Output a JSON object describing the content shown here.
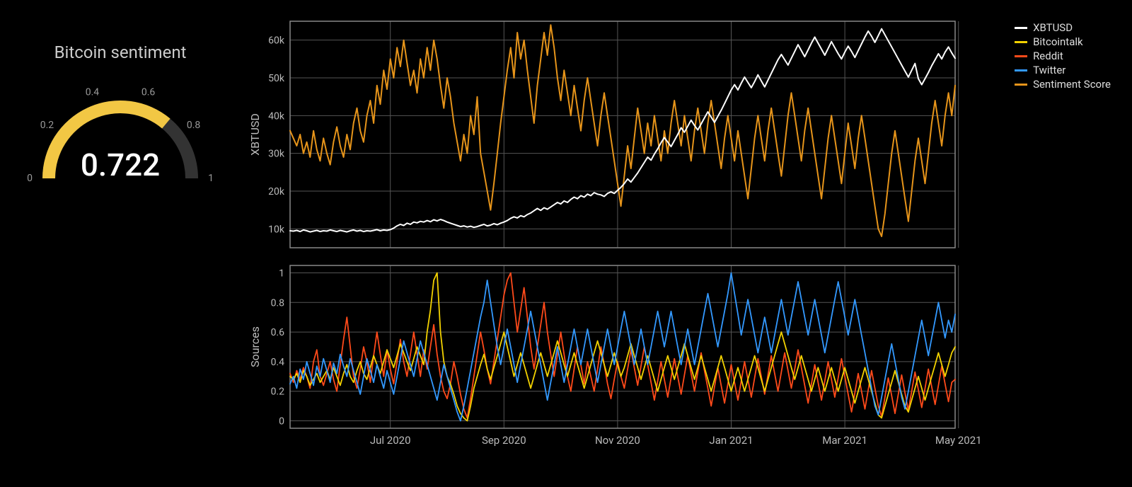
{
  "background_color": "#000000",
  "grid_color": "#555555",
  "axis_border_color": "#888888",
  "gauge": {
    "title": "Bitcoin sentiment",
    "value": 0.722,
    "value_text": "0.722",
    "min": 0,
    "max": 1,
    "ticks": [
      0,
      0.2,
      0.4,
      0.6,
      0.8,
      1
    ],
    "tick_labels": [
      "0",
      "0.2",
      "0.4",
      "0.6",
      "0.8",
      "1"
    ],
    "fill_color": "#f2c744",
    "track_color": "#333333",
    "title_color": "#cccccc",
    "tick_color": "#999999",
    "value_color": "#ffffff",
    "title_fontsize": 24,
    "value_fontsize": 44,
    "tick_fontsize": 14,
    "arc_width": 18
  },
  "legend": {
    "items": [
      {
        "label": "XBTUSD",
        "color": "#ffffff"
      },
      {
        "label": "Bitcointalk",
        "color": "#f2d100"
      },
      {
        "label": "Reddit",
        "color": "#ff4a1a"
      },
      {
        "label": "Twitter",
        "color": "#3399ff"
      },
      {
        "label": "Sentiment Score",
        "color": "#e6941a"
      }
    ],
    "fontsize": 15,
    "label_color": "#dddddd"
  },
  "x_axis": {
    "n_points": 200,
    "tick_positions": [
      30,
      64,
      98,
      132,
      166,
      200
    ],
    "tick_labels": [
      "Jul 2020",
      "Sep 2020",
      "Nov 2020",
      "Jan 2021",
      "Mar 2021",
      "May 2021"
    ],
    "label_fontsize": 15,
    "label_color": "#bbbbbb"
  },
  "panel_top": {
    "type": "line",
    "ylabel": "XBTUSD",
    "ylim": [
      5000,
      65000
    ],
    "yticks": [
      10000,
      20000,
      30000,
      40000,
      50000,
      60000
    ],
    "ytick_labels": [
      "10k",
      "20k",
      "30k",
      "40k",
      "50k",
      "60k"
    ],
    "line_width": 2,
    "series": {
      "xbtusd": {
        "color": "#ffffff",
        "values": [
          9500,
          9400,
          9600,
          9300,
          9700,
          9500,
          9200,
          9400,
          9600,
          9300,
          9500,
          9400,
          9700,
          9500,
          9300,
          9600,
          9400,
          9200,
          9500,
          9700,
          9400,
          9600,
          9300,
          9500,
          9400,
          9600,
          9800,
          9500,
          9700,
          9600,
          9800,
          10200,
          10800,
          11200,
          10900,
          11500,
          11200,
          11800,
          11600,
          12000,
          11800,
          12200,
          11900,
          12400,
          12100,
          12500,
          12200,
          11800,
          11500,
          11200,
          10900,
          10600,
          10800,
          10500,
          10700,
          10400,
          10600,
          10900,
          11200,
          10800,
          11000,
          11400,
          11100,
          11500,
          11800,
          12200,
          12800,
          13200,
          12900,
          13500,
          13200,
          13800,
          14200,
          14800,
          15400,
          14900,
          15600,
          15200,
          15800,
          16400,
          17000,
          16600,
          17400,
          17000,
          17800,
          18400,
          18000,
          18800,
          18400,
          19200,
          18800,
          19600,
          19200,
          19000,
          18600,
          19400,
          19800,
          19400,
          20200,
          21000,
          22000,
          23200,
          22400,
          23600,
          24800,
          26200,
          27600,
          29000,
          28200,
          29800,
          31200,
          32800,
          34200,
          33000,
          31800,
          33400,
          35000,
          36800,
          35600,
          37200,
          38800,
          37400,
          36200,
          37800,
          39400,
          41000,
          39600,
          38200,
          39800,
          41400,
          43200,
          45000,
          46800,
          48200,
          46800,
          48600,
          50200,
          48800,
          47400,
          49000,
          50800,
          49200,
          47600,
          49400,
          51200,
          53000,
          54800,
          56200,
          54800,
          53400,
          55200,
          57000,
          58800,
          57200,
          55600,
          57400,
          59200,
          60800,
          59200,
          57600,
          56000,
          57800,
          59600,
          58000,
          56400,
          55000,
          56800,
          58400,
          57000,
          55400,
          57200,
          59000,
          60800,
          62400,
          61000,
          59400,
          61200,
          63000,
          61400,
          59800,
          58200,
          56600,
          55000,
          53400,
          51800,
          50200,
          52000,
          53800,
          49800,
          48200,
          49800,
          51400,
          53200,
          54800,
          56400,
          55000,
          56800,
          58200,
          56600,
          55200
        ]
      },
      "sentiment": {
        "color": "#e6941a",
        "values": [
          36000,
          34000,
          32000,
          35000,
          30000,
          33000,
          29000,
          36000,
          31000,
          28000,
          34000,
          30000,
          27000,
          33000,
          37000,
          32000,
          29000,
          35000,
          31000,
          38000,
          42000,
          36000,
          33000,
          40000,
          44000,
          38000,
          48000,
          43000,
          52000,
          47000,
          55000,
          50000,
          58000,
          53000,
          60000,
          54000,
          48000,
          52000,
          46000,
          55000,
          50000,
          58000,
          52000,
          60000,
          55000,
          48000,
          42000,
          50000,
          45000,
          38000,
          33000,
          28000,
          35000,
          30000,
          40000,
          35000,
          45000,
          30000,
          25000,
          20000,
          15000,
          22000,
          30000,
          38000,
          45000,
          52000,
          58000,
          50000,
          62000,
          55000,
          60000,
          52000,
          45000,
          38000,
          48000,
          55000,
          62000,
          56000,
          64000,
          58000,
          50000,
          44000,
          52000,
          46000,
          40000,
          48000,
          42000,
          36000,
          44000,
          50000,
          44000,
          38000,
          32000,
          40000,
          46000,
          40000,
          34000,
          28000,
          22000,
          16000,
          24000,
          32000,
          26000,
          34000,
          42000,
          36000,
          30000,
          38000,
          32000,
          40000,
          34000,
          28000,
          36000,
          30000,
          38000,
          44000,
          38000,
          32000,
          40000,
          34000,
          28000,
          36000,
          42000,
          36000,
          30000,
          38000,
          44000,
          38000,
          32000,
          26000,
          34000,
          40000,
          34000,
          28000,
          36000,
          30000,
          24000,
          18000,
          26000,
          34000,
          40000,
          34000,
          28000,
          36000,
          42000,
          36000,
          30000,
          24000,
          32000,
          40000,
          46000,
          40000,
          34000,
          28000,
          36000,
          42000,
          36000,
          30000,
          24000,
          18000,
          26000,
          34000,
          40000,
          34000,
          28000,
          22000,
          30000,
          38000,
          32000,
          26000,
          34000,
          40000,
          34000,
          28000,
          22000,
          16000,
          10000,
          8000,
          14000,
          22000,
          30000,
          36000,
          30000,
          24000,
          18000,
          12000,
          20000,
          28000,
          34000,
          28000,
          22000,
          30000,
          38000,
          44000,
          38000,
          32000,
          40000,
          46000,
          40000,
          48000
        ]
      }
    }
  },
  "panel_bottom": {
    "type": "line",
    "ylabel": "Sources",
    "ylim": [
      -0.05,
      1.05
    ],
    "yticks": [
      0,
      0.2,
      0.4,
      0.6,
      0.8,
      1
    ],
    "ytick_labels": [
      "0",
      "0.2",
      "0.4",
      "0.6",
      "0.8",
      "1"
    ],
    "line_width": 1.8,
    "series": {
      "bitcointalk": {
        "color": "#f2d100",
        "values": [
          0.3,
          0.28,
          0.32,
          0.26,
          0.34,
          0.3,
          0.24,
          0.28,
          0.32,
          0.26,
          0.3,
          0.34,
          0.28,
          0.36,
          0.3,
          0.24,
          0.32,
          0.38,
          0.3,
          0.26,
          0.34,
          0.4,
          0.32,
          0.28,
          0.36,
          0.44,
          0.38,
          0.32,
          0.4,
          0.48,
          0.42,
          0.36,
          0.44,
          0.52,
          0.46,
          0.4,
          0.34,
          0.42,
          0.5,
          0.44,
          0.38,
          0.6,
          0.75,
          0.95,
          1.0,
          0.6,
          0.4,
          0.3,
          0.25,
          0.18,
          0.1,
          0.05,
          0.02,
          0.0,
          0.1,
          0.22,
          0.3,
          0.38,
          0.45,
          0.35,
          0.28,
          0.36,
          0.44,
          0.52,
          0.6,
          0.5,
          0.4,
          0.3,
          0.38,
          0.46,
          0.38,
          0.3,
          0.22,
          0.3,
          0.38,
          0.46,
          0.38,
          0.3,
          0.38,
          0.46,
          0.54,
          0.46,
          0.38,
          0.3,
          0.38,
          0.46,
          0.38,
          0.3,
          0.22,
          0.3,
          0.38,
          0.46,
          0.54,
          0.46,
          0.38,
          0.3,
          0.38,
          0.46,
          0.38,
          0.3,
          0.36,
          0.44,
          0.52,
          0.44,
          0.36,
          0.28,
          0.36,
          0.44,
          0.36,
          0.28,
          0.2,
          0.28,
          0.36,
          0.44,
          0.36,
          0.28,
          0.36,
          0.44,
          0.52,
          0.44,
          0.36,
          0.28,
          0.36,
          0.44,
          0.36,
          0.28,
          0.2,
          0.28,
          0.36,
          0.44,
          0.36,
          0.28,
          0.2,
          0.28,
          0.36,
          0.28,
          0.2,
          0.28,
          0.36,
          0.44,
          0.36,
          0.28,
          0.2,
          0.28,
          0.36,
          0.44,
          0.52,
          0.6,
          0.52,
          0.44,
          0.36,
          0.28,
          0.36,
          0.44,
          0.36,
          0.28,
          0.2,
          0.28,
          0.36,
          0.28,
          0.2,
          0.28,
          0.36,
          0.28,
          0.2,
          0.28,
          0.36,
          0.28,
          0.2,
          0.12,
          0.2,
          0.28,
          0.36,
          0.28,
          0.2,
          0.12,
          0.04,
          0.02,
          0.1,
          0.18,
          0.26,
          0.34,
          0.26,
          0.18,
          0.1,
          0.06,
          0.14,
          0.22,
          0.3,
          0.22,
          0.14,
          0.22,
          0.3,
          0.38,
          0.46,
          0.38,
          0.3,
          0.38,
          0.46,
          0.5
        ]
      },
      "reddit": {
        "color": "#ff4a1a",
        "values": [
          0.32,
          0.26,
          0.34,
          0.28,
          0.36,
          0.3,
          0.22,
          0.4,
          0.48,
          0.3,
          0.24,
          0.32,
          0.4,
          0.28,
          0.2,
          0.38,
          0.55,
          0.7,
          0.5,
          0.3,
          0.22,
          0.35,
          0.5,
          0.4,
          0.26,
          0.44,
          0.6,
          0.45,
          0.3,
          0.48,
          0.35,
          0.25,
          0.4,
          0.55,
          0.4,
          0.3,
          0.45,
          0.6,
          0.45,
          0.3,
          0.48,
          0.35,
          0.5,
          0.65,
          0.45,
          0.3,
          0.2,
          0.15,
          0.25,
          0.4,
          0.3,
          0.18,
          0.08,
          0.02,
          0.15,
          0.3,
          0.45,
          0.6,
          0.48,
          0.35,
          0.25,
          0.4,
          0.55,
          0.7,
          0.85,
          0.95,
          1.0,
          0.8,
          0.6,
          0.75,
          0.9,
          0.7,
          0.5,
          0.35,
          0.5,
          0.65,
          0.8,
          0.6,
          0.45,
          0.3,
          0.45,
          0.6,
          0.45,
          0.3,
          0.2,
          0.35,
          0.5,
          0.38,
          0.25,
          0.4,
          0.3,
          0.2,
          0.35,
          0.5,
          0.38,
          0.25,
          0.15,
          0.28,
          0.4,
          0.3,
          0.22,
          0.35,
          0.48,
          0.36,
          0.24,
          0.37,
          0.5,
          0.38,
          0.26,
          0.14,
          0.27,
          0.4,
          0.28,
          0.16,
          0.29,
          0.42,
          0.3,
          0.18,
          0.31,
          0.44,
          0.32,
          0.2,
          0.33,
          0.46,
          0.34,
          0.22,
          0.1,
          0.23,
          0.36,
          0.24,
          0.12,
          0.25,
          0.38,
          0.26,
          0.14,
          0.27,
          0.4,
          0.28,
          0.16,
          0.29,
          0.42,
          0.3,
          0.18,
          0.31,
          0.44,
          0.32,
          0.2,
          0.33,
          0.46,
          0.34,
          0.22,
          0.35,
          0.48,
          0.36,
          0.24,
          0.12,
          0.25,
          0.38,
          0.26,
          0.14,
          0.27,
          0.4,
          0.28,
          0.16,
          0.29,
          0.42,
          0.3,
          0.18,
          0.06,
          0.19,
          0.32,
          0.2,
          0.08,
          0.21,
          0.34,
          0.22,
          0.1,
          0.03,
          0.16,
          0.29,
          0.17,
          0.05,
          0.18,
          0.31,
          0.19,
          0.07,
          0.2,
          0.33,
          0.21,
          0.09,
          0.22,
          0.35,
          0.23,
          0.11,
          0.24,
          0.37,
          0.25,
          0.13,
          0.26,
          0.28
        ]
      },
      "twitter": {
        "color": "#3399ff",
        "values": [
          0.25,
          0.3,
          0.22,
          0.35,
          0.28,
          0.4,
          0.32,
          0.24,
          0.37,
          0.3,
          0.42,
          0.34,
          0.26,
          0.39,
          0.32,
          0.45,
          0.37,
          0.3,
          0.42,
          0.34,
          0.26,
          0.18,
          0.3,
          0.42,
          0.34,
          0.26,
          0.38,
          0.3,
          0.22,
          0.34,
          0.26,
          0.18,
          0.3,
          0.42,
          0.54,
          0.46,
          0.38,
          0.3,
          0.42,
          0.54,
          0.46,
          0.38,
          0.3,
          0.22,
          0.14,
          0.26,
          0.38,
          0.3,
          0.22,
          0.14,
          0.06,
          0.0,
          0.1,
          0.22,
          0.34,
          0.46,
          0.58,
          0.7,
          0.8,
          0.95,
          0.8,
          0.65,
          0.5,
          0.38,
          0.5,
          0.62,
          0.5,
          0.38,
          0.26,
          0.38,
          0.5,
          0.62,
          0.74,
          0.62,
          0.5,
          0.38,
          0.26,
          0.14,
          0.26,
          0.38,
          0.5,
          0.38,
          0.26,
          0.38,
          0.5,
          0.62,
          0.5,
          0.38,
          0.5,
          0.62,
          0.5,
          0.38,
          0.26,
          0.38,
          0.5,
          0.62,
          0.5,
          0.38,
          0.5,
          0.62,
          0.74,
          0.62,
          0.5,
          0.38,
          0.5,
          0.62,
          0.5,
          0.38,
          0.5,
          0.62,
          0.74,
          0.62,
          0.5,
          0.62,
          0.74,
          0.62,
          0.5,
          0.38,
          0.5,
          0.62,
          0.5,
          0.38,
          0.5,
          0.62,
          0.74,
          0.86,
          0.74,
          0.62,
          0.5,
          0.62,
          0.74,
          0.86,
          1.0,
          0.86,
          0.72,
          0.58,
          0.7,
          0.82,
          0.7,
          0.58,
          0.46,
          0.58,
          0.7,
          0.58,
          0.46,
          0.58,
          0.7,
          0.82,
          0.7,
          0.58,
          0.7,
          0.82,
          0.94,
          0.82,
          0.7,
          0.58,
          0.7,
          0.82,
          0.7,
          0.58,
          0.46,
          0.58,
          0.7,
          0.82,
          0.94,
          0.82,
          0.7,
          0.58,
          0.7,
          0.82,
          0.7,
          0.58,
          0.46,
          0.34,
          0.22,
          0.1,
          0.04,
          0.16,
          0.28,
          0.4,
          0.52,
          0.4,
          0.28,
          0.16,
          0.08,
          0.2,
          0.32,
          0.44,
          0.56,
          0.68,
          0.56,
          0.44,
          0.56,
          0.68,
          0.8,
          0.68,
          0.56,
          0.68,
          0.6,
          0.72
        ]
      }
    }
  }
}
